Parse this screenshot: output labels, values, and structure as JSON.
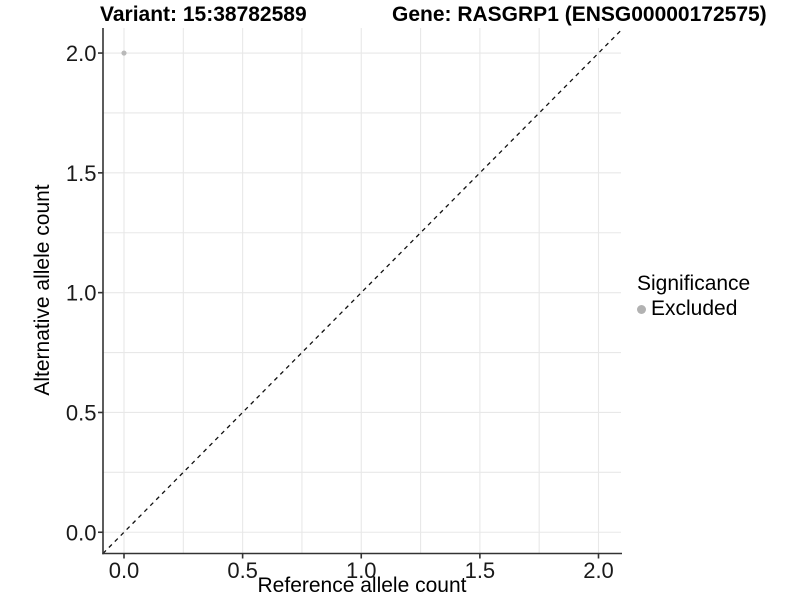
{
  "chart_data": {
    "type": "scatter",
    "title_left": "Variant: 15:38782589",
    "title_right": "Gene: RASGRP1 (ENSG00000172575)",
    "xlabel": "Reference allele count",
    "ylabel": "Alternative allele count",
    "xlim": [
      -0.09,
      2.1
    ],
    "ylim": [
      -0.09,
      2.1
    ],
    "x_tick_values": [
      0,
      0.5,
      1,
      1.5,
      2
    ],
    "x_tick_labels": [
      "0.0",
      "0.5",
      "1.0",
      "1.5",
      "2.0"
    ],
    "y_tick_values": [
      0,
      0.5,
      1,
      1.5,
      2
    ],
    "y_tick_labels": [
      "0.0",
      "0.5",
      "1.0",
      "1.5",
      "2.0"
    ],
    "grid": {
      "step": 0.25,
      "color": "#e8e8e8",
      "shown": true
    },
    "points": [
      {
        "x": 0.0,
        "y": 2.0,
        "significance": "Excluded",
        "color": "#b9b9b9"
      }
    ],
    "reference_line": {
      "slope": 1,
      "intercept": 0,
      "linetype": "dashed",
      "color": "#111111"
    },
    "legend": {
      "position": "right",
      "title": "Significance",
      "entries": [
        {
          "label": "Excluded",
          "color": "#b2b2b2"
        }
      ]
    },
    "colors": {
      "background": "#ffffff",
      "axis_line": "#333333",
      "tick_label": "#1a1a1a",
      "point": "#b9b9b9"
    }
  }
}
